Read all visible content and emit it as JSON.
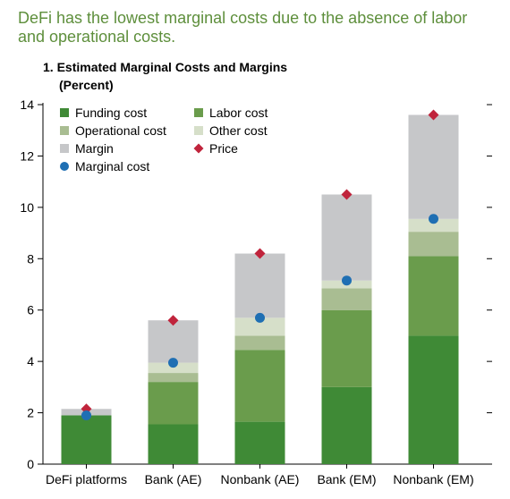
{
  "headline": "DeFi has the lowest marginal costs due to the absence of labor and operational costs.",
  "colors": {
    "headline": "#5e8f3c",
    "funding": "#3f8a36",
    "labor": "#6a9c4c",
    "operational": "#a9bd92",
    "other": "#d6dfc9",
    "margin": "#c6c7c9",
    "price": "#c0243c",
    "marginal": "#1f6fb3"
  },
  "chart_data": {
    "type": "bar",
    "stacked": true,
    "title": "1. Estimated Marginal Costs and Margins",
    "subtitle": "(Percent)",
    "categories": [
      "DeFi platforms",
      "Bank (AE)",
      "Nonbank (AE)",
      "Bank (EM)",
      "Nonbank (EM)"
    ],
    "ylim": [
      0,
      14
    ],
    "yticks": [
      0,
      2,
      4,
      6,
      8,
      10,
      12,
      14
    ],
    "grid": false,
    "legend_position": "top-left",
    "series": [
      {
        "name": "Funding cost",
        "key": "funding",
        "values": [
          1.9,
          1.55,
          1.65,
          3.0,
          5.0
        ]
      },
      {
        "name": "Labor cost",
        "key": "labor",
        "values": [
          0.0,
          1.65,
          2.8,
          3.0,
          3.1
        ]
      },
      {
        "name": "Operational cost",
        "key": "operational",
        "values": [
          0.0,
          0.35,
          0.55,
          0.85,
          0.95
        ]
      },
      {
        "name": "Other cost",
        "key": "other",
        "values": [
          0.0,
          0.4,
          0.7,
          0.3,
          0.5
        ]
      },
      {
        "name": "Margin",
        "key": "margin",
        "values": [
          0.25,
          1.65,
          2.5,
          3.35,
          4.05
        ]
      }
    ],
    "markers": [
      {
        "name": "Price",
        "key": "price",
        "shape": "diamond",
        "values": [
          2.15,
          5.6,
          8.2,
          10.5,
          13.6
        ]
      },
      {
        "name": "Marginal cost",
        "key": "marginal",
        "shape": "circle",
        "values": [
          1.9,
          3.95,
          5.7,
          7.15,
          9.55
        ]
      }
    ],
    "legend": [
      {
        "name": "Funding cost",
        "key": "funding",
        "shape": "square"
      },
      {
        "name": "Labor cost",
        "key": "labor",
        "shape": "square"
      },
      {
        "name": "Operational cost",
        "key": "operational",
        "shape": "square"
      },
      {
        "name": "Other cost",
        "key": "other",
        "shape": "square"
      },
      {
        "name": "Margin",
        "key": "margin",
        "shape": "square"
      },
      {
        "name": "Price",
        "key": "price",
        "shape": "diamond"
      },
      {
        "name": "Marginal cost",
        "key": "marginal",
        "shape": "circle"
      }
    ]
  }
}
